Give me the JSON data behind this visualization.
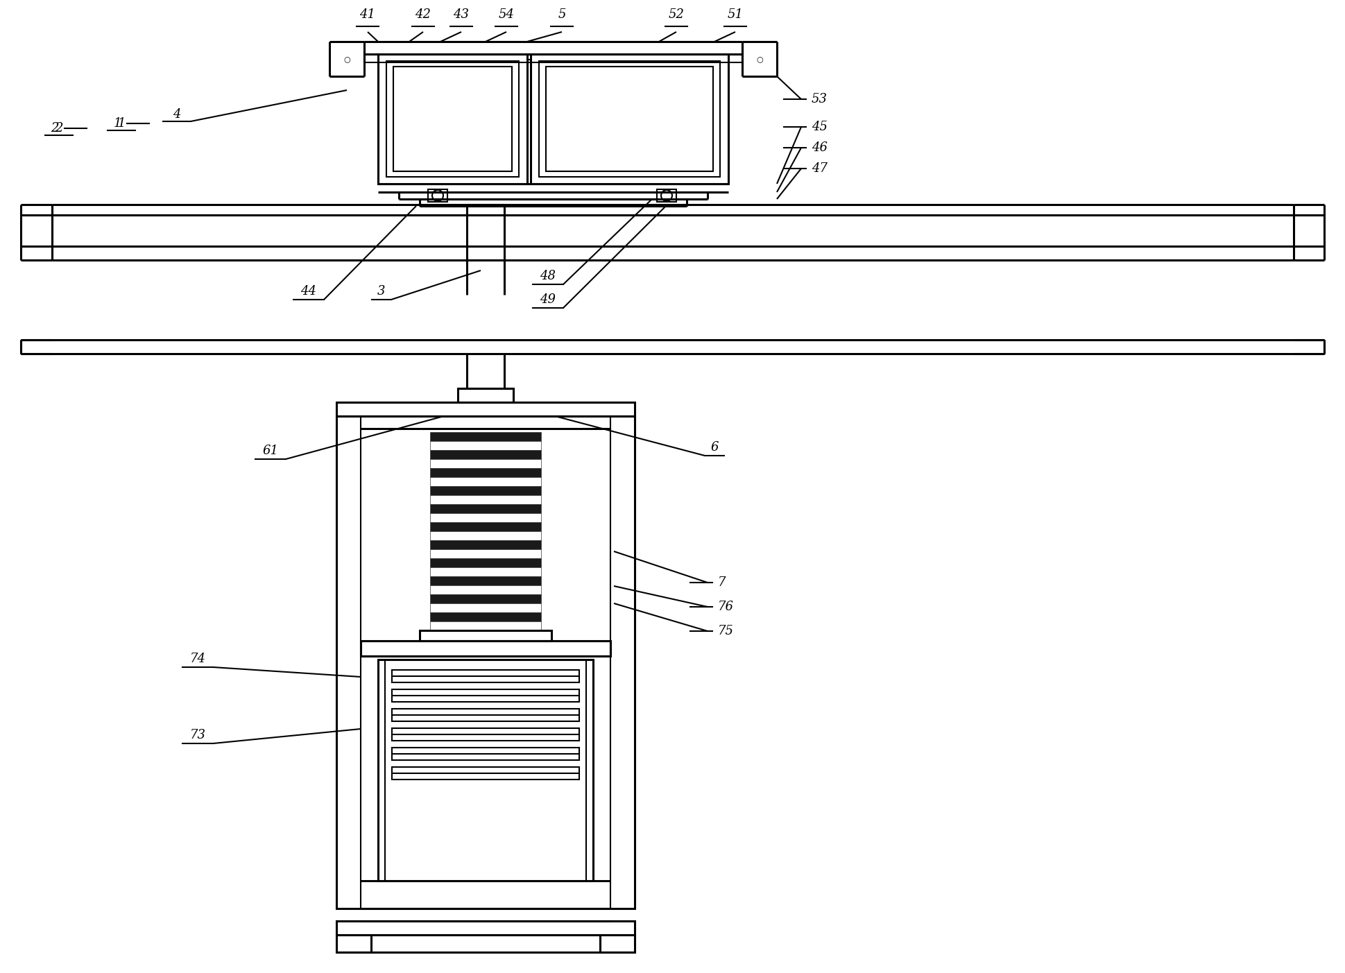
{
  "bg_color": "#ffffff",
  "line_color": "#000000",
  "lw": 1.5,
  "lw2": 2.2,
  "fig_width": 19.39,
  "fig_height": 14.03
}
